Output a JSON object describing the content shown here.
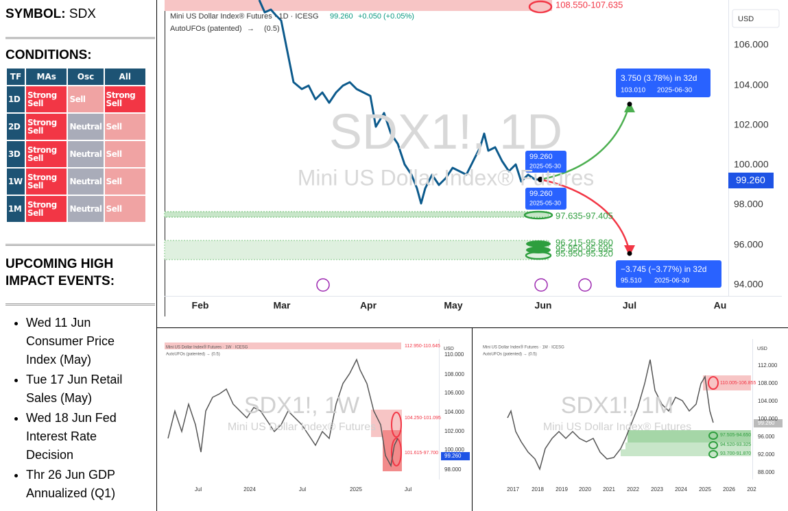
{
  "sidebar": {
    "symbol_label": "SYMBOL:",
    "symbol": "SDX",
    "conditions_title": "CONDITIONS:",
    "table": {
      "header": [
        "TF",
        "MAs",
        "Osc",
        "All"
      ],
      "header_color": "#1d5374",
      "rows": [
        [
          {
            "text": "1D",
            "color": "#1d5374"
          },
          {
            "text": "Strong Sell",
            "color": "#f23645"
          },
          {
            "text": "Sell",
            "color": "#f0a3a3"
          },
          {
            "text": "Strong Sell",
            "color": "#f23645"
          }
        ],
        [
          {
            "text": "2D",
            "color": "#1d5374"
          },
          {
            "text": "Strong Sell",
            "color": "#f23645"
          },
          {
            "text": "Neutral",
            "color": "#a9acb9"
          },
          {
            "text": "Sell",
            "color": "#f0a3a3"
          }
        ],
        [
          {
            "text": "3D",
            "color": "#1d5374"
          },
          {
            "text": "Strong Sell",
            "color": "#f23645"
          },
          {
            "text": "Neutral",
            "color": "#a9acb9"
          },
          {
            "text": "Sell",
            "color": "#f0a3a3"
          }
        ],
        [
          {
            "text": "1W",
            "color": "#1d5374"
          },
          {
            "text": "Strong Sell",
            "color": "#f23645"
          },
          {
            "text": "Neutral",
            "color": "#a9acb9"
          },
          {
            "text": "Sell",
            "color": "#f0a3a3"
          }
        ],
        [
          {
            "text": "1M",
            "color": "#1d5374"
          },
          {
            "text": "Strong Sell",
            "color": "#f23645"
          },
          {
            "text": "Neutral",
            "color": "#a9acb9"
          },
          {
            "text": "Sell",
            "color": "#f0a3a3"
          }
        ]
      ]
    },
    "events_title": "UPCOMING HIGH IMPACT EVENTS:",
    "events": [
      "Wed 11 Jun Consumer Price Index (May)",
      "Tue 17 Jun Retail Sales (May)",
      "Wed 18 Jun Fed Interest Rate Decision",
      "Thr 26 Jun GDP Annualized (Q1)"
    ]
  },
  "main_chart": {
    "header": "Mini US Dollar Index® Futures · 1D · ICESG",
    "price": "99.260",
    "change": "+0.050 (+0.05%)",
    "indicator": "AutoUFOs (patented)",
    "arrow": "→",
    "param": "(0.5)",
    "watermark": "SDX1!, 1D",
    "watermark_sub": "Mini US Dollar Index® Futures",
    "currency": "USD",
    "y_labels": [
      "106.000",
      "104.000",
      "102.000",
      "100.000",
      "98.000",
      "96.000",
      "94.000"
    ],
    "last_price": "99.260",
    "point_price_top": "99.260",
    "point_date_top": "2025-05-30",
    "point_price_bottom": "99.260",
    "point_date_bottom": "2025-05-30",
    "up_target": "3.750 (3.78%) in 32d",
    "up_price": "103.010",
    "up_date": "2025-06-30",
    "down_target": "−3.745 (−3.77%) in 32d",
    "down_price": "95.510",
    "down_date": "2025-06-30",
    "zones": [
      "108.550-107.635",
      "97.635-97.405",
      "96.215-95.860",
      "95.950-95.695",
      "95.950-95.320"
    ],
    "x_labels": [
      "Feb",
      "Mar",
      "Apr",
      "May",
      "Jun",
      "Jul",
      "Au"
    ]
  },
  "weekly_chart": {
    "header": "Mini US Dollar Index® Futures · 1W · ICESG",
    "indicator": "AutoUFOs (patented) → (0.5)",
    "watermark": "SDX1!, 1W",
    "watermark_sub": "Mini US Dollar Index® Futures",
    "currency": "USD",
    "y_labels": [
      "110.000",
      "108.000",
      "106.000",
      "104.000",
      "102.000",
      "100.000",
      "98.000"
    ],
    "last_price": "99.260",
    "zones": [
      "112.950-110.645",
      "104.250-101.095",
      "101.615-97.700"
    ],
    "x_labels": [
      "Jul",
      "2024",
      "Jul",
      "2025",
      "Jul"
    ]
  },
  "monthly_chart": {
    "header": "Mini US Dollar Index® Futures · 1M · ICESG",
    "indicator": "AutoUFOs (patented) → (0.5)",
    "watermark": "SDX1!, 1M",
    "watermark_sub": "Mini US Dollar Index® Futures",
    "currency": "USD",
    "y_labels": [
      "112.000",
      "108.000",
      "104.000",
      "100.000",
      "96.000",
      "92.000",
      "88.000"
    ],
    "last_price": "99.260",
    "zones": [
      "110.005-106.855",
      "97.505-94.650",
      "94.520-93.325",
      "93.700-91.870"
    ],
    "x_labels": [
      "2017",
      "2018",
      "2019",
      "2020",
      "2021",
      "2022",
      "2023",
      "2024",
      "2025",
      "2026",
      "202"
    ]
  }
}
